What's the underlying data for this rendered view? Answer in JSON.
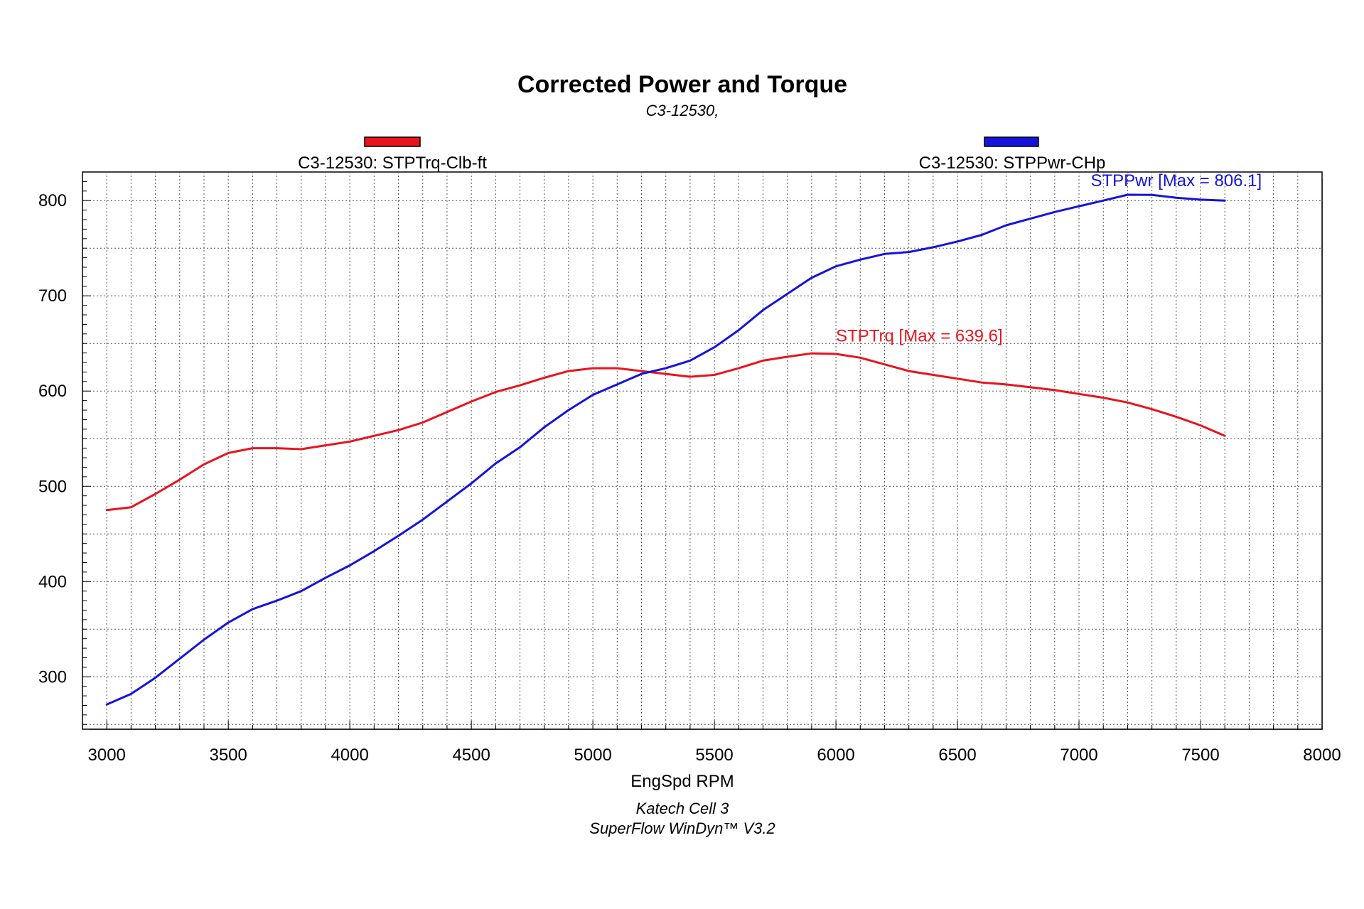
{
  "chart_data": {
    "type": "line",
    "title": "Corrected Power and Torque",
    "subtitle": "C3-12530,",
    "xlabel": "EngSpd RPM",
    "xlim": [
      2900,
      8000
    ],
    "ylim": [
      245,
      830
    ],
    "x_ticks": [
      3000,
      3500,
      4000,
      4500,
      5000,
      5500,
      6000,
      6500,
      7000,
      7500,
      8000
    ],
    "y_ticks": [
      300,
      400,
      500,
      600,
      700,
      800
    ],
    "grid": true,
    "legend_position": "top",
    "footer": [
      "Katech Cell 3",
      "SuperFlow WinDyn™ V3.2"
    ],
    "series": [
      {
        "name": "C3-12530: STPTrq-Clb-ft",
        "color": "#e8141e",
        "annotation": "STPTrq [Max = 639.6]",
        "annotation_at": [
          6000,
          652
        ],
        "x": [
          3000,
          3100,
          3200,
          3300,
          3400,
          3500,
          3600,
          3700,
          3800,
          3900,
          4000,
          4100,
          4200,
          4300,
          4400,
          4500,
          4600,
          4700,
          4800,
          4900,
          5000,
          5100,
          5200,
          5300,
          5400,
          5500,
          5600,
          5700,
          5800,
          5900,
          6000,
          6100,
          6200,
          6300,
          6400,
          6500,
          6600,
          6700,
          6800,
          6900,
          7000,
          7100,
          7200,
          7300,
          7400,
          7500,
          7600
        ],
        "values": [
          475,
          478,
          492,
          507,
          523,
          535,
          540,
          540,
          539,
          543,
          547,
          553,
          559,
          567,
          578,
          589,
          599,
          606,
          614,
          621,
          624,
          624,
          621,
          618,
          615,
          617,
          624,
          632,
          636,
          639.6,
          639,
          635,
          628,
          621,
          617,
          613,
          609,
          607,
          604,
          601,
          597,
          593,
          588,
          581,
          573,
          564,
          553
        ]
      },
      {
        "name": "C3-12530: STPPwr-CHp",
        "color": "#1414dc",
        "annotation": "STPPwr [Max = 806.1]",
        "annotation_at": [
          7400,
          815
        ],
        "x": [
          3000,
          3100,
          3200,
          3300,
          3400,
          3500,
          3600,
          3700,
          3800,
          3900,
          4000,
          4100,
          4200,
          4300,
          4400,
          4500,
          4600,
          4700,
          4800,
          4900,
          5000,
          5100,
          5200,
          5300,
          5400,
          5500,
          5600,
          5700,
          5800,
          5900,
          6000,
          6100,
          6200,
          6300,
          6400,
          6500,
          6600,
          6700,
          6800,
          6900,
          7000,
          7100,
          7200,
          7300,
          7400,
          7500,
          7600
        ],
        "values": [
          271,
          282,
          299,
          319,
          339,
          357,
          371,
          380,
          390,
          404,
          417,
          432,
          448,
          465,
          484,
          503,
          524,
          541,
          562,
          580,
          596,
          607,
          618,
          624,
          632,
          646,
          664,
          685,
          702,
          719,
          731,
          738,
          744,
          746,
          751,
          757,
          764,
          774,
          781,
          788,
          794,
          800,
          806.1,
          806,
          803,
          801,
          800
        ]
      }
    ]
  }
}
